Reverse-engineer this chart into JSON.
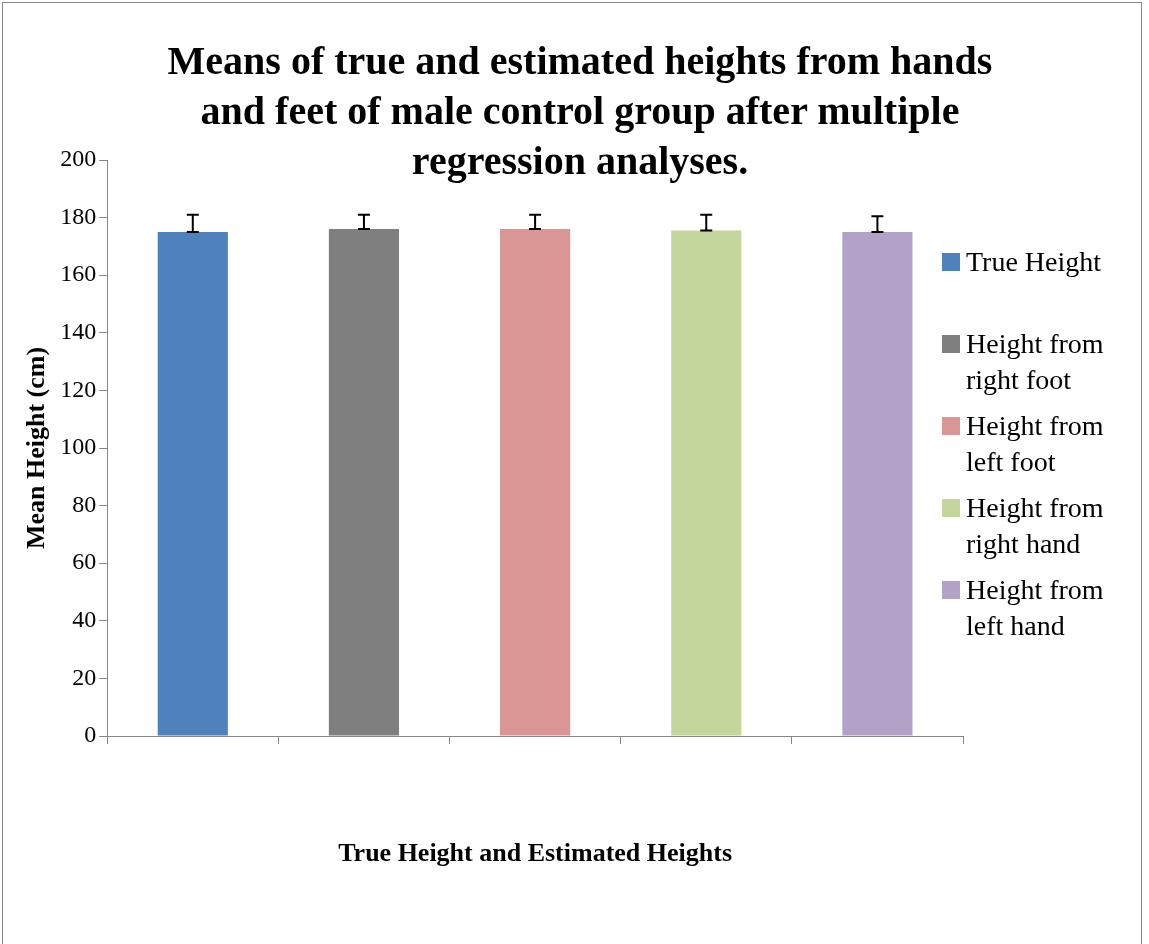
{
  "chart_data": {
    "type": "bar",
    "title": "Means of true and estimated heights from hands and feet of male control group after multiple regression analyses.",
    "xlabel": "True Height and Estimated Heights",
    "ylabel": "Mean Height (cm)",
    "categories": [
      null,
      null,
      null,
      null,
      null
    ],
    "ylim": [
      0,
      200
    ],
    "yticks": [
      0,
      20,
      40,
      60,
      80,
      100,
      120,
      140,
      160,
      180,
      200
    ],
    "legend": "right",
    "series": [
      {
        "name": "True Height",
        "color": "#4f81bd",
        "values": [
          175,
          null,
          null,
          null,
          null
        ],
        "errors": [
          [
            175,
            181
          ],
          null,
          null,
          null,
          null
        ]
      },
      {
        "name": "Height from right foot",
        "color": "#7f7f7f",
        "values": [
          null,
          176,
          null,
          null,
          null
        ],
        "errors": [
          null,
          [
            176,
            181
          ],
          null,
          null,
          null
        ]
      },
      {
        "name": "Height from left foot",
        "color": "#d99694",
        "values": [
          null,
          null,
          176,
          null,
          null
        ],
        "errors": [
          null,
          null,
          [
            176,
            181
          ],
          null,
          null
        ]
      },
      {
        "name": "Height from right hand",
        "color": "#c3d69b",
        "values": [
          null,
          null,
          null,
          175.5,
          null
        ],
        "errors": [
          null,
          null,
          null,
          [
            175.5,
            181
          ],
          null
        ]
      },
      {
        "name": "Height from left hand",
        "color": "#b2a2c7",
        "values": [
          null,
          null,
          null,
          null,
          175
        ],
        "errors": [
          null,
          null,
          null,
          null,
          [
            175,
            180.5
          ]
        ]
      }
    ]
  }
}
